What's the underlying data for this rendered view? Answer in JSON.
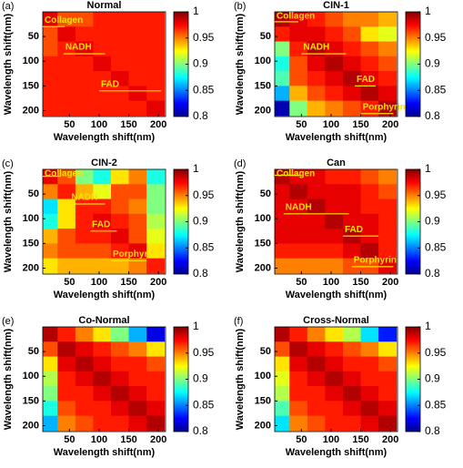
{
  "chart_data": [
    {
      "type": "heatmap",
      "panel": "(a)",
      "title": "Normal",
      "xlabel": "Wavelength shift(nm)",
      "ylabel": "Wavelength shift(nm)",
      "xlim": [
        5,
        212
      ],
      "ylim": [
        0,
        212
      ],
      "xticks": [
        50,
        100,
        150,
        200
      ],
      "yticks": [
        50,
        100,
        150,
        200
      ],
      "x": [
        15,
        45,
        75,
        105,
        135,
        165,
        195
      ],
      "y": [
        15,
        45,
        75,
        105,
        135,
        165,
        195
      ],
      "zlim": [
        0.8,
        1
      ],
      "zticks": [
        0.8,
        0.85,
        0.9,
        0.95,
        1
      ],
      "z": [
        [
          0.98,
          0.96,
          0.96,
          0.97,
          0.97,
          0.97,
          0.97
        ],
        [
          0.96,
          0.98,
          0.97,
          0.97,
          0.97,
          0.97,
          0.97
        ],
        [
          0.96,
          0.97,
          0.98,
          0.97,
          0.97,
          0.97,
          0.97
        ],
        [
          0.97,
          0.97,
          0.97,
          0.98,
          0.97,
          0.97,
          0.97
        ],
        [
          0.97,
          0.97,
          0.97,
          0.97,
          0.98,
          0.97,
          0.97
        ],
        [
          0.97,
          0.97,
          0.97,
          0.97,
          0.97,
          0.98,
          0.97
        ],
        [
          0.97,
          0.97,
          0.97,
          0.97,
          0.97,
          0.97,
          0.98
        ]
      ],
      "annotations": [
        {
          "text": "Collagen",
          "x": [
            5,
            42
          ],
          "y": 30
        },
        {
          "text": "NADH",
          "x": [
            40,
            110
          ],
          "y": 85
        },
        {
          "text": "FAD",
          "x": [
            100,
            205
          ],
          "y": 160
        }
      ]
    },
    {
      "type": "heatmap",
      "panel": "(b)",
      "title": "CIN-1",
      "xlabel": "Wavelength shift(nm)",
      "ylabel": "Wavelength shift(nm)",
      "xlim": [
        5,
        212
      ],
      "ylim": [
        0,
        212
      ],
      "xticks": [
        50,
        100,
        150,
        200
      ],
      "yticks": [
        50,
        100,
        150,
        200
      ],
      "x": [
        15,
        45,
        75,
        105,
        135,
        165,
        195
      ],
      "y": [
        15,
        45,
        75,
        105,
        135,
        165,
        195
      ],
      "zlim": [
        0.8,
        1
      ],
      "zticks": [
        0.8,
        0.85,
        0.9,
        0.95,
        1
      ],
      "z": [
        [
          0.99,
          0.98,
          0.97,
          0.96,
          0.95,
          0.95,
          0.94
        ],
        [
          0.97,
          0.98,
          0.98,
          0.97,
          0.96,
          0.93,
          0.92
        ],
        [
          0.9,
          0.97,
          0.99,
          0.98,
          0.97,
          0.96,
          0.95
        ],
        [
          0.88,
          0.96,
          0.98,
          0.99,
          0.98,
          0.97,
          0.96
        ],
        [
          0.89,
          0.96,
          0.97,
          0.98,
          0.99,
          0.98,
          0.97
        ],
        [
          0.86,
          0.94,
          0.96,
          0.97,
          0.98,
          0.99,
          0.98
        ],
        [
          0.81,
          0.9,
          0.94,
          0.95,
          0.96,
          0.97,
          0.99
        ]
      ],
      "annotations": [
        {
          "text": "Collagen",
          "x": [
            5,
            45
          ],
          "y": 20
        },
        {
          "text": "NADH",
          "x": [
            50,
            125
          ],
          "y": 85
        },
        {
          "text": "FAD",
          "x": [
            140,
            175
          ],
          "y": 150
        },
        {
          "text": "Porphyrin",
          "x": [
            150,
            205
          ],
          "y": 206
        }
      ]
    },
    {
      "type": "heatmap",
      "panel": "(c)",
      "title": "CIN-2",
      "xlabel": "Wavelength shift(nm)",
      "ylabel": "Wavelength shift(nm)",
      "xlim": [
        5,
        212
      ],
      "ylim": [
        0,
        212
      ],
      "xticks": [
        50,
        100,
        150,
        200
      ],
      "yticks": [
        50,
        100,
        150,
        200
      ],
      "x": [
        15,
        45,
        75,
        105,
        135,
        165,
        195
      ],
      "y": [
        15,
        45,
        75,
        105,
        135,
        165,
        195
      ],
      "zlim": [
        0.8,
        1
      ],
      "zticks": [
        0.8,
        0.85,
        0.9,
        0.95,
        1
      ],
      "z": [
        [
          0.98,
          0.96,
          0.9,
          0.88,
          0.93,
          0.95,
          0.88
        ],
        [
          0.95,
          0.97,
          0.94,
          0.92,
          0.96,
          0.96,
          0.9
        ],
        [
          0.87,
          0.93,
          0.97,
          0.97,
          0.96,
          0.95,
          0.9
        ],
        [
          0.88,
          0.93,
          0.97,
          0.98,
          0.97,
          0.96,
          0.91
        ],
        [
          0.94,
          0.96,
          0.97,
          0.97,
          0.98,
          0.96,
          0.92
        ],
        [
          0.95,
          0.96,
          0.96,
          0.96,
          0.97,
          0.98,
          0.93
        ],
        [
          0.93,
          0.94,
          0.94,
          0.94,
          0.94,
          0.95,
          0.97
        ]
      ],
      "annotations": [
        {
          "text": "Collagen",
          "x": [
            5,
            35
          ],
          "y": 14
        },
        {
          "text": "NADH",
          "x": [
            50,
            110
          ],
          "y": 70
        },
        {
          "text": "FAD",
          "x": [
            85,
            130
          ],
          "y": 125
        },
        {
          "text": "Porphyrin",
          "x": [
            120,
            180
          ],
          "y": 185
        }
      ]
    },
    {
      "type": "heatmap",
      "panel": "(d)",
      "title": "Can",
      "xlabel": "Wavelength shift(nm)",
      "ylabel": "Wavelength shift(nm)",
      "xlim": [
        5,
        212
      ],
      "ylim": [
        0,
        212
      ],
      "xticks": [
        50,
        100,
        150,
        200
      ],
      "yticks": [
        50,
        100,
        150,
        200
      ],
      "x": [
        15,
        45,
        75,
        105,
        135,
        165,
        195
      ],
      "y": [
        15,
        45,
        75,
        105,
        135,
        165,
        195
      ],
      "zlim": [
        0.8,
        1
      ],
      "zticks": [
        0.8,
        0.85,
        0.9,
        0.95,
        1
      ],
      "z": [
        [
          0.99,
          0.98,
          0.98,
          0.97,
          0.97,
          0.96,
          0.95
        ],
        [
          0.98,
          0.99,
          0.98,
          0.98,
          0.98,
          0.97,
          0.96
        ],
        [
          0.98,
          0.98,
          0.99,
          0.98,
          0.98,
          0.97,
          0.97
        ],
        [
          0.98,
          0.98,
          0.98,
          0.99,
          0.98,
          0.98,
          0.97
        ],
        [
          0.98,
          0.98,
          0.98,
          0.98,
          0.99,
          0.98,
          0.97
        ],
        [
          0.97,
          0.97,
          0.97,
          0.97,
          0.98,
          0.99,
          0.97
        ],
        [
          0.95,
          0.95,
          0.95,
          0.95,
          0.96,
          0.96,
          0.98
        ]
      ],
      "annotations": [
        {
          "text": "Collagen",
          "x": [
            5,
            50
          ],
          "y": 12
        },
        {
          "text": "NADH",
          "x": [
            20,
            130
          ],
          "y": 90
        },
        {
          "text": "FAD",
          "x": [
            120,
            180
          ],
          "y": 135
        },
        {
          "text": "Porphyrin",
          "x": [
            135,
            205
          ],
          "y": 197
        }
      ]
    },
    {
      "type": "heatmap",
      "panel": "(e)",
      "title": "Co-Normal",
      "xlabel": "Wavelength shift(nm)",
      "ylabel": "Wavelength shift(nm)",
      "xlim": [
        5,
        212
      ],
      "ylim": [
        0,
        212
      ],
      "xticks": [
        50,
        100,
        150,
        200
      ],
      "yticks": [
        50,
        100,
        150,
        200
      ],
      "x": [
        15,
        45,
        75,
        105,
        135,
        165,
        195
      ],
      "y": [
        15,
        45,
        75,
        105,
        135,
        165,
        195
      ],
      "zlim": [
        0.8,
        1
      ],
      "zticks": [
        0.8,
        0.85,
        0.9,
        0.95,
        1
      ],
      "z": [
        [
          0.99,
          0.97,
          0.95,
          0.93,
          0.9,
          0.86,
          0.82
        ],
        [
          0.96,
          0.99,
          0.98,
          0.97,
          0.96,
          0.95,
          0.93
        ],
        [
          0.93,
          0.98,
          0.99,
          0.98,
          0.97,
          0.97,
          0.96
        ],
        [
          0.91,
          0.97,
          0.98,
          0.99,
          0.98,
          0.97,
          0.97
        ],
        [
          0.9,
          0.97,
          0.97,
          0.98,
          0.99,
          0.98,
          0.97
        ],
        [
          0.88,
          0.96,
          0.97,
          0.97,
          0.98,
          0.99,
          0.98
        ],
        [
          0.86,
          0.95,
          0.96,
          0.97,
          0.97,
          0.98,
          0.99
        ]
      ],
      "annotations": []
    },
    {
      "type": "heatmap",
      "panel": "(f)",
      "title": "Cross-Normal",
      "xlabel": "Wavelength shift(nm)",
      "ylabel": "Wavelength shift(nm)",
      "xlim": [
        5,
        212
      ],
      "ylim": [
        0,
        212
      ],
      "xticks": [
        50,
        100,
        150,
        200
      ],
      "yticks": [
        50,
        100,
        150,
        200
      ],
      "x": [
        15,
        45,
        75,
        105,
        135,
        165,
        195
      ],
      "y": [
        15,
        45,
        75,
        105,
        135,
        165,
        195
      ],
      "zlim": [
        0.8,
        1
      ],
      "zticks": [
        0.8,
        0.85,
        0.9,
        0.95,
        1
      ],
      "z": [
        [
          0.99,
          0.97,
          0.95,
          0.93,
          0.91,
          0.87,
          0.83
        ],
        [
          0.96,
          0.99,
          0.98,
          0.97,
          0.96,
          0.95,
          0.93
        ],
        [
          0.93,
          0.98,
          0.99,
          0.98,
          0.97,
          0.97,
          0.96
        ],
        [
          0.92,
          0.97,
          0.98,
          0.99,
          0.98,
          0.97,
          0.97
        ],
        [
          0.91,
          0.97,
          0.97,
          0.98,
          0.99,
          0.98,
          0.97
        ],
        [
          0.89,
          0.96,
          0.97,
          0.97,
          0.98,
          0.99,
          0.98
        ],
        [
          0.87,
          0.95,
          0.96,
          0.97,
          0.97,
          0.98,
          0.99
        ]
      ],
      "annotations": []
    }
  ]
}
